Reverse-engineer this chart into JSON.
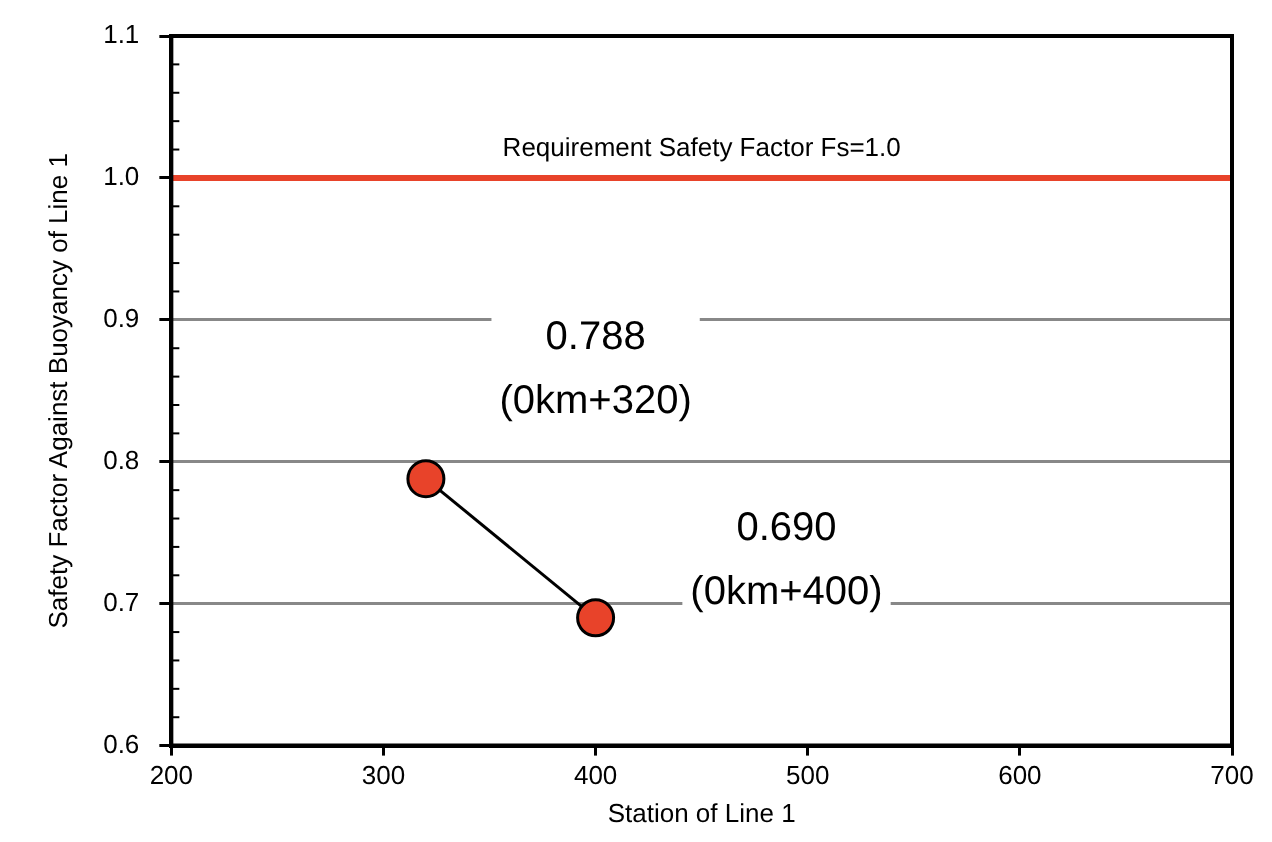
{
  "chart_data": {
    "type": "line",
    "xlabel": "Station of Line 1",
    "ylabel": "Safety Factor Against Buoyancy of Line 1",
    "series": [
      {
        "x": [
          320,
          400
        ],
        "values": [
          0.788,
          0.69
        ],
        "color": "#e8432a"
      }
    ],
    "xlim": [
      200,
      700
    ],
    "xticks": [
      200,
      300,
      400,
      500,
      600,
      700
    ],
    "ylim": [
      0.6,
      1.1
    ],
    "yticks": [
      {
        "value": 0.6,
        "label": "0.6"
      },
      {
        "value": 0.7,
        "label": "0.7"
      },
      {
        "value": 0.8,
        "label": "0.8"
      },
      {
        "value": 0.9,
        "label": "0.9"
      },
      {
        "value": 1.0,
        "label": "1.0"
      },
      {
        "value": 1.1,
        "label": "1.1"
      }
    ],
    "grid": "y",
    "legend": false,
    "marker": "circle",
    "line_style": "solid",
    "ref_lines": [
      {
        "axis": "y",
        "value": 1.0,
        "label": "Requirement Safety Factor Fs=1.0",
        "color": "#e8432a"
      }
    ],
    "annotations": [
      "0.788\n(0km+320)",
      "0.690\n(0km+400)"
    ]
  }
}
